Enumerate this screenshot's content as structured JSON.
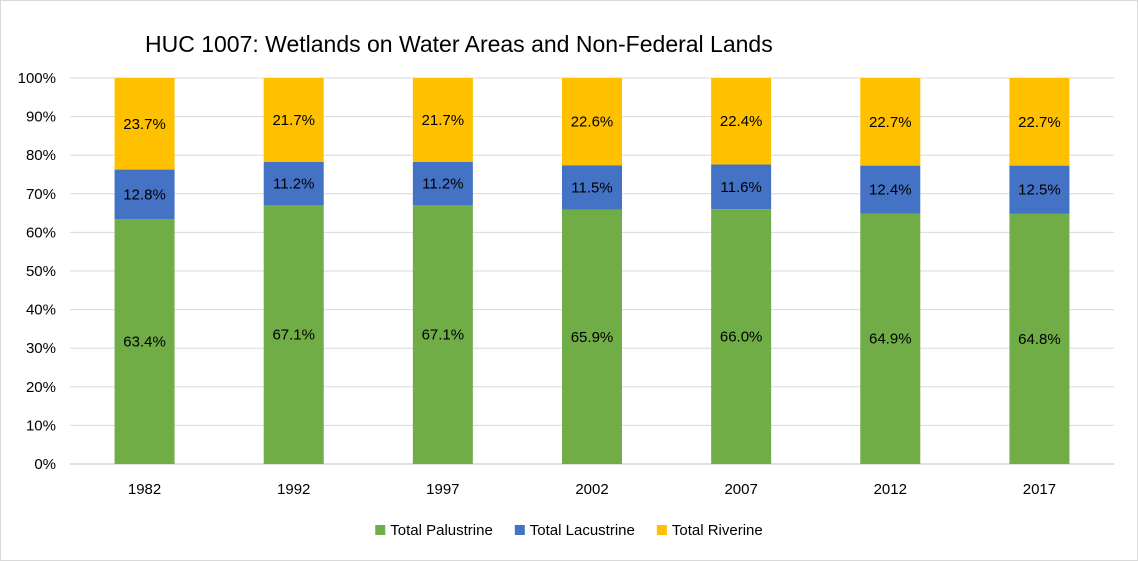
{
  "chart_data": {
    "type": "bar",
    "stacked": "percent",
    "title": "HUC 1007: Wetlands on Water Areas and Non-Federal Lands",
    "xlabel": "",
    "ylabel": "",
    "ylim": [
      0,
      100
    ],
    "yticks": [
      "0%",
      "10%",
      "20%",
      "30%",
      "40%",
      "50%",
      "60%",
      "70%",
      "80%",
      "90%",
      "100%"
    ],
    "categories": [
      "1982",
      "1992",
      "1997",
      "2002",
      "2007",
      "2012",
      "2017"
    ],
    "series": [
      {
        "name": "Total Palustrine",
        "color": "#70ad47",
        "values": [
          63.4,
          67.1,
          67.1,
          65.9,
          66.0,
          64.9,
          64.8
        ],
        "labels": [
          "63.4%",
          "67.1%",
          "67.1%",
          "65.9%",
          "66.0%",
          "64.9%",
          "64.8%"
        ]
      },
      {
        "name": "Total Lacustrine",
        "color": "#4472c4",
        "values": [
          12.8,
          11.2,
          11.2,
          11.5,
          11.6,
          12.4,
          12.5
        ],
        "labels": [
          "12.8%",
          "11.2%",
          "11.2%",
          "11.5%",
          "11.6%",
          "12.4%",
          "12.5%"
        ]
      },
      {
        "name": "Total Riverine",
        "color": "#ffc000",
        "values": [
          23.7,
          21.7,
          21.7,
          22.6,
          22.4,
          22.7,
          22.7
        ],
        "labels": [
          "23.7%",
          "21.7%",
          "21.7%",
          "22.6%",
          "22.4%",
          "22.7%",
          "22.7%"
        ]
      }
    ],
    "grid": true,
    "legend_position": "bottom"
  }
}
